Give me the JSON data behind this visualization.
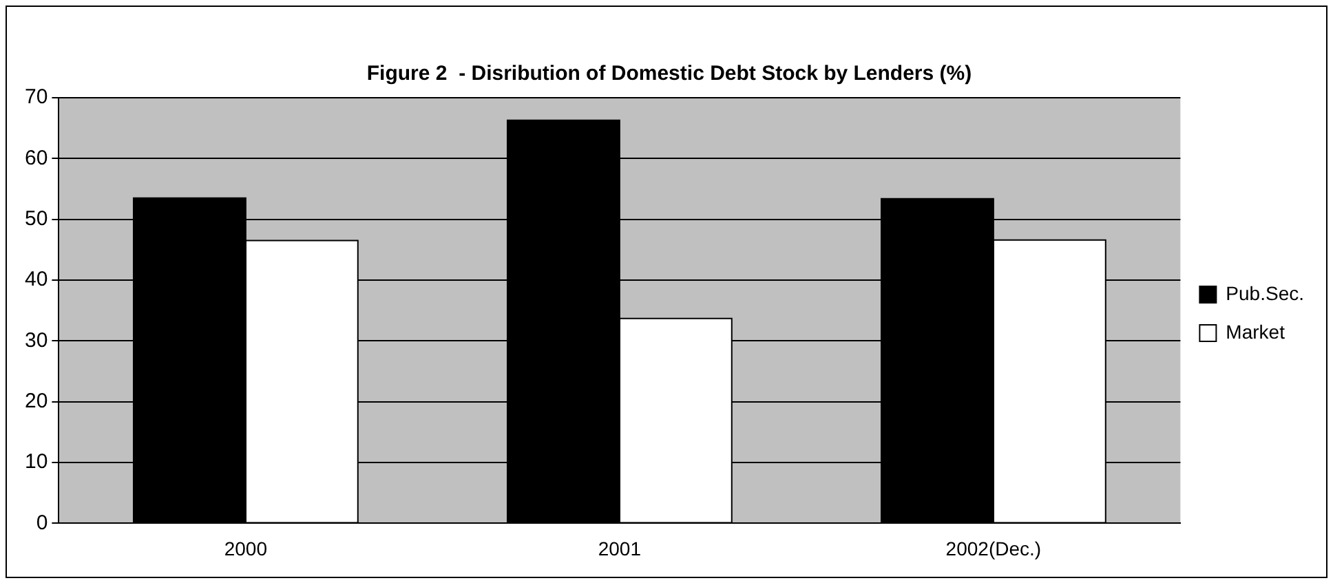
{
  "chart_data": {
    "type": "bar",
    "title": "Figure 2  - Disribution of Domestic Debt Stock by Lenders (%)",
    "categories": [
      "2000",
      "2001",
      "2002(Dec.)"
    ],
    "series": [
      {
        "name": "Pub.Sec.",
        "color": "#000000",
        "values": [
          53.5,
          66.3,
          53.4
        ]
      },
      {
        "name": "Market",
        "color": "#ffffff",
        "values": [
          46.5,
          33.7,
          46.6
        ]
      }
    ],
    "ylim": [
      0,
      70
    ],
    "yticks": [
      0,
      10,
      20,
      30,
      40,
      50,
      60,
      70
    ],
    "grid": "y",
    "legend": "right"
  }
}
